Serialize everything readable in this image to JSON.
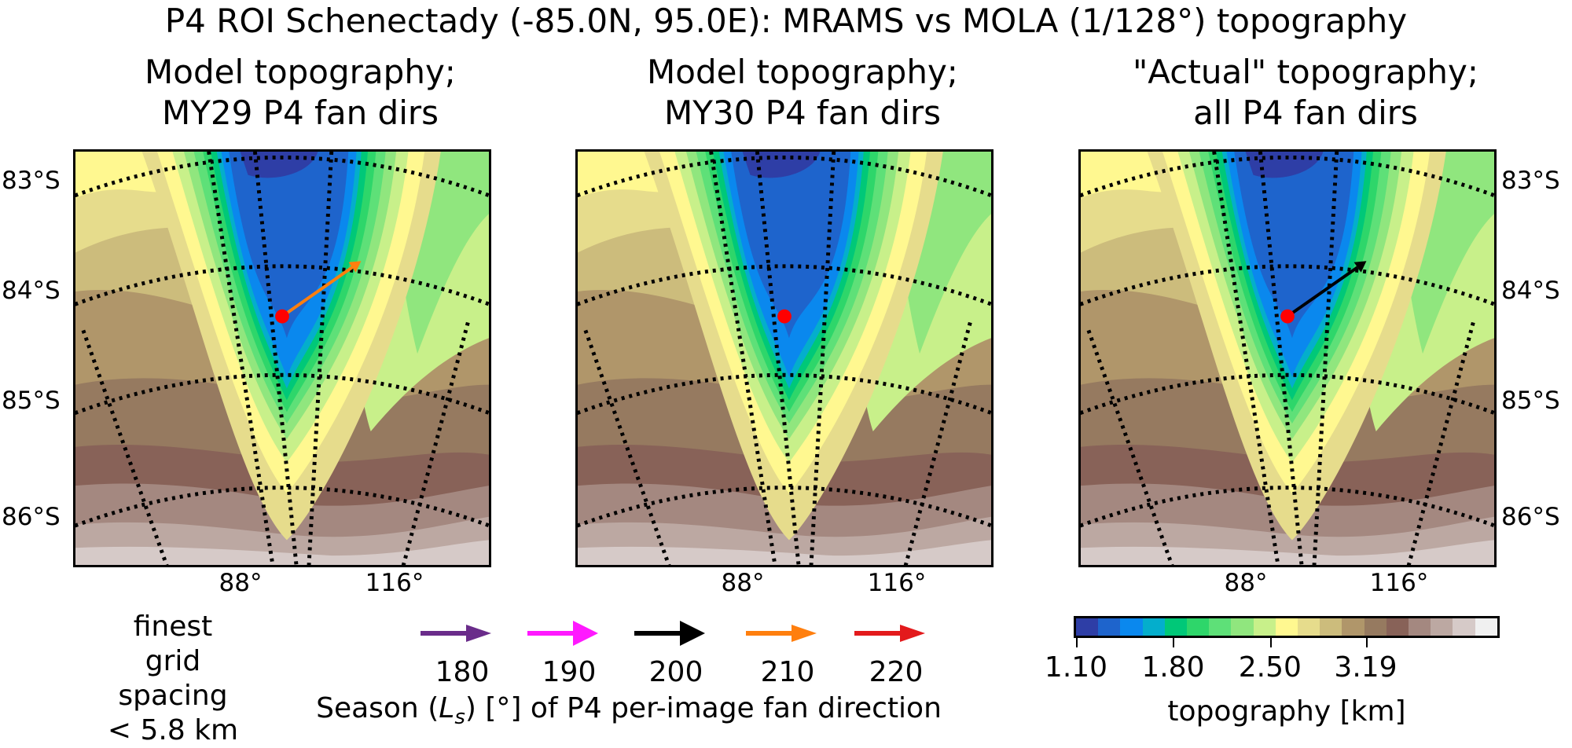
{
  "suptitle": "P4 ROI Schenectady (-85.0N, 95.0E): MRAMS vs MOLA (1/128°) topography",
  "chart_data": {
    "type": "heatmap",
    "title": "P4 ROI Schenectady (-85.0N, 95.0E): MRAMS vs MOLA (1/128°) topography",
    "roi": {
      "name": "Schenectady",
      "lat": -85.0,
      "lon": 95.0
    },
    "panels": [
      {
        "id": "my29",
        "title_line1": "Model topography;",
        "title_line2": "MY29 P4 fan dirs",
        "fan_arrows": [
          {
            "ls": 210,
            "color": "#ff7f0e",
            "bearing_deg": 55
          }
        ],
        "lat_labels_side": "left"
      },
      {
        "id": "my30",
        "title_line1": "Model topography;",
        "title_line2": "MY30 P4 fan dirs",
        "fan_arrows": [],
        "lat_labels_side": "none"
      },
      {
        "id": "actual",
        "title_line1": "\"Actual\" topography;",
        "title_line2": "all P4 fan dirs",
        "fan_arrows": [
          {
            "ls": 200,
            "color": "#000000",
            "bearing_deg": 55
          }
        ],
        "lat_labels_side": "right"
      }
    ],
    "lat_ticks": [
      "83°S",
      "84°S",
      "85°S",
      "86°S"
    ],
    "lon_ticks": [
      "88°",
      "116°"
    ],
    "roi_marker_color": "#ff0000",
    "grid": "dotted graticule",
    "season_legend": {
      "title": "Season (Ls) [°] of P4 per-image fan direction",
      "title_prefix": "Season (",
      "title_L": "L",
      "title_sub": "s",
      "title_suffix": ") [°] of P4 per-image fan direction",
      "entries": [
        {
          "ls": "180",
          "color": "#6a2c8a"
        },
        {
          "ls": "190",
          "color": "#ff19ff"
        },
        {
          "ls": "200",
          "color": "#000000"
        },
        {
          "ls": "210",
          "color": "#ff7f0e"
        },
        {
          "ls": "220",
          "color": "#e31a1c"
        }
      ]
    },
    "colorbar": {
      "label": "topography [km]",
      "range_km": [
        1.1,
        4.14
      ],
      "ticks": [
        "1.10",
        "1.80",
        "2.50",
        "3.19"
      ],
      "colors": [
        "#2e3ea6",
        "#1e64cc",
        "#0a88ee",
        "#04aecc",
        "#00c878",
        "#2ed66a",
        "#5ee078",
        "#90e67e",
        "#c8f08a",
        "#fff890",
        "#e6dc8c",
        "#ccbc7c",
        "#b0966a",
        "#967a60",
        "#886258",
        "#a48880",
        "#bca8a2",
        "#d6cac8",
        "#f0f0f0"
      ]
    }
  },
  "note": {
    "line1": "finest",
    "line2": "grid spacing",
    "line3": "< 5.8 km"
  }
}
